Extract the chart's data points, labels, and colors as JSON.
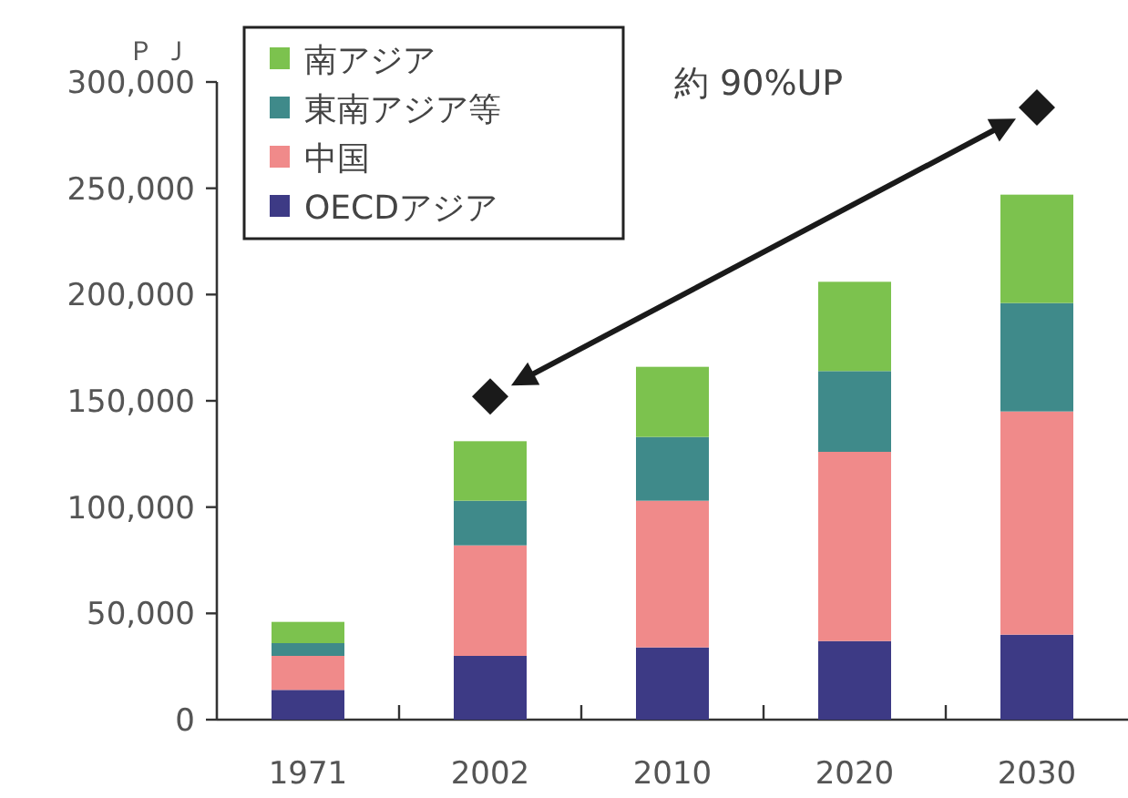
{
  "chart_data": {
    "type": "bar",
    "stacked": true,
    "ylabel": "ＰＪ",
    "legend": "top left",
    "categories": [
      "1971",
      "2002",
      "2010",
      "2020",
      "2030"
    ],
    "series": [
      {
        "name": "OECDアジア",
        "color": "#3d3a85",
        "values": [
          14000,
          30000,
          34000,
          37000,
          40000
        ]
      },
      {
        "name": "中国",
        "color": "#f08a8a",
        "values": [
          16000,
          52000,
          69000,
          89000,
          105000
        ]
      },
      {
        "name": "東南アジア等",
        "color": "#3f8a8a",
        "values": [
          6000,
          21000,
          30000,
          38000,
          51000
        ]
      },
      {
        "name": "南アジア",
        "color": "#7cc24e",
        "values": [
          10000,
          28000,
          33000,
          42000,
          51000
        ]
      },
      {
        "type": "scatter",
        "marker": "diamond",
        "color": "#1a1a1a",
        "values": [
          null,
          152000,
          null,
          null,
          288000
        ]
      }
    ],
    "ylim": [
      0,
      300000
    ],
    "yticks": [
      {
        "value": 0,
        "label": "0"
      },
      {
        "value": 50000,
        "label": "50,000"
      },
      {
        "value": 100000,
        "label": "100,000"
      },
      {
        "value": 150000,
        "label": "150,000"
      },
      {
        "value": 200000,
        "label": "200,000"
      },
      {
        "value": 250000,
        "label": "250,000"
      },
      {
        "value": 300000,
        "label": "300,000"
      }
    ],
    "annotations": [
      "約 90%UP"
    ]
  }
}
